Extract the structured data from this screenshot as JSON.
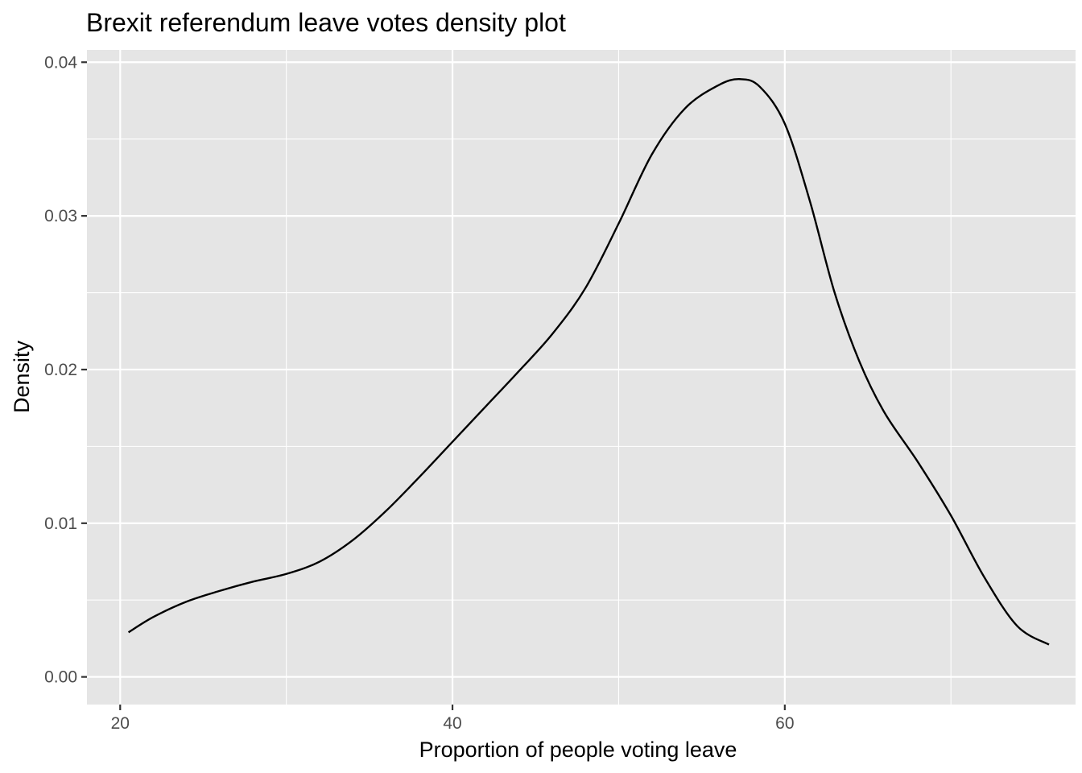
{
  "chart_data": {
    "type": "line",
    "title": "Brexit referendum leave votes density plot",
    "xlabel": "Proportion of people voting leave",
    "ylabel": "Density",
    "xlim": [
      18,
      77.5
    ],
    "ylim": [
      -0.0018,
      0.0408
    ],
    "x_ticks": [
      20,
      40,
      60
    ],
    "x_tick_labels": [
      "20",
      "40",
      "60"
    ],
    "y_ticks": [
      0,
      0.01,
      0.02,
      0.03,
      0.04
    ],
    "y_tick_labels": [
      "0.00",
      "0.01",
      "0.02",
      "0.03",
      "0.04"
    ],
    "grid": true,
    "legend": "none",
    "colors": {
      "panel": "#e5e5e5",
      "grid": "#ffffff",
      "line": "#000000",
      "tick_text": "#4d4d4d"
    },
    "series": [
      {
        "x": [
          20.5,
          22,
          24,
          26,
          28,
          30,
          32,
          34,
          36,
          38,
          40,
          42,
          44,
          46,
          48,
          50,
          52,
          54,
          56,
          57.3,
          58.5,
          60,
          61.5,
          63,
          64.5,
          66,
          68,
          70,
          72,
          74,
          75.9
        ],
        "y": [
          0.0029,
          0.0039,
          0.0049,
          0.0056,
          0.0062,
          0.0067,
          0.0075,
          0.0089,
          0.0108,
          0.013,
          0.0153,
          0.0176,
          0.0199,
          0.0223,
          0.0253,
          0.0295,
          0.034,
          0.037,
          0.0385,
          0.0389,
          0.0384,
          0.036,
          0.031,
          0.025,
          0.0205,
          0.0172,
          0.014,
          0.0105,
          0.0065,
          0.0033,
          0.0021
        ]
      }
    ]
  }
}
